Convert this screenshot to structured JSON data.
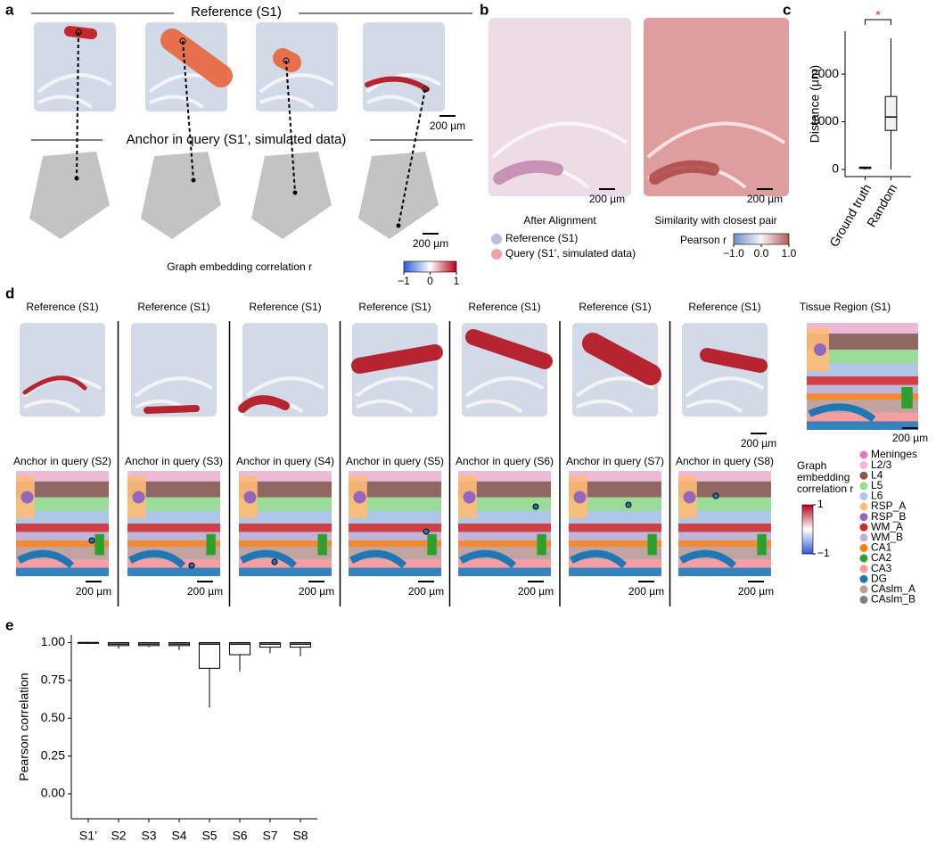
{
  "panel_labels": [
    "a",
    "b",
    "c",
    "d",
    "e"
  ],
  "panel_a": {
    "reference_title": "Reference (S1)",
    "query_title": "Anchor in query (S1’, simulated data)",
    "scale_bar": "200 µm",
    "colorbar_label": "Graph embedding correlation r",
    "colorbar_ticks": [
      {
        "value": -1,
        "label": "−1"
      },
      0,
      1
    ]
  },
  "panel_b": {
    "left_caption": "After Alignment",
    "right_caption": "Similarity with closest pair",
    "scale_bar": "200 µm",
    "legend": [
      {
        "name": "Reference (S1)",
        "color": "#b9bfe0"
      },
      {
        "name": "Query (S1’, simulated data)",
        "color": "#f0a3a6"
      }
    ],
    "colorbar_label": "Pearson r",
    "colorbar_ticks": [
      {
        "value": -1,
        "label": "−1.0"
      },
      {
        "value": 0,
        "label": "0.0"
      },
      {
        "value": 1,
        "label": "1.0"
      }
    ]
  },
  "panel_d": {
    "reference_titles": [
      "Reference (S1)",
      "Reference (S1)",
      "Reference (S1)",
      "Reference (S1)",
      "Reference (S1)",
      "Reference (S1)",
      "Reference (S1)"
    ],
    "region_title": "Tissue Region (S1)",
    "query_titles": [
      "Anchor in query (S2)",
      "Anchor in query (S3)",
      "Anchor in query (S4)",
      "Anchor in query (S5)",
      "Anchor in query (S6)",
      "Anchor in query (S7)",
      "Anchor in query (S8)"
    ],
    "scale_bar": "200 µm",
    "colorbar_label_lines": [
      "Graph",
      "embedding",
      "correlation r"
    ],
    "colorbar_ticks": [
      1,
      {
        "value": -1,
        "label": "−1"
      }
    ],
    "regions": [
      {
        "name": "Meninges",
        "color": "#e377c2"
      },
      {
        "name": "L2/3",
        "color": "#f7b6d2"
      },
      {
        "name": "L4",
        "color": "#8c564b"
      },
      {
        "name": "L5",
        "color": "#98df8a"
      },
      {
        "name": "L6",
        "color": "#aec7e8"
      },
      {
        "name": "RSP_A",
        "color": "#ffbb78"
      },
      {
        "name": "RSP_B",
        "color": "#9467bd"
      },
      {
        "name": "WM_A",
        "color": "#d62728"
      },
      {
        "name": "WM_B",
        "color": "#c5b0d5"
      },
      {
        "name": "CA1",
        "color": "#ff7f0e"
      },
      {
        "name": "CA2",
        "color": "#2ca02c"
      },
      {
        "name": "CA3",
        "color": "#ff9896"
      },
      {
        "name": "DG",
        "color": "#1f77b4"
      },
      {
        "name": "CAslm_A",
        "color": "#c49c94"
      },
      {
        "name": "CAslm_B",
        "color": "#7f7f7f"
      }
    ]
  },
  "chart_data": [
    {
      "type": "box",
      "y_label": "Distance (µm)",
      "categories": [
        "Ground truth",
        "Random"
      ],
      "boxes": [
        {
          "min": 0,
          "q1": 20,
          "median": 35,
          "q3": 50,
          "max": 60
        },
        {
          "min": 0,
          "q1": 820,
          "median": 1100,
          "q3": 1530,
          "max": 2750
        }
      ],
      "significance": "*",
      "ylim": [
        -150,
        2900
      ],
      "yticks": [
        0,
        1000,
        2000
      ],
      "color": "#f2f2f2"
    },
    {
      "type": "box",
      "y_label": "Pearson correlation",
      "categories": [
        "S1’",
        "S2",
        "S3",
        "S4",
        "S5",
        "S6",
        "S7",
        "S8"
      ],
      "boxes": [
        {
          "min": 0.99,
          "q1": 0.995,
          "median": 1.0,
          "q3": 1.0,
          "max": 1.0
        },
        {
          "min": 0.96,
          "q1": 0.98,
          "median": 0.99,
          "q3": 1.0,
          "max": 1.0
        },
        {
          "min": 0.97,
          "q1": 0.98,
          "median": 0.99,
          "q3": 1.0,
          "max": 1.0
        },
        {
          "min": 0.95,
          "q1": 0.98,
          "median": 0.99,
          "q3": 1.0,
          "max": 1.0
        },
        {
          "min": 0.57,
          "q1": 0.83,
          "median": 0.99,
          "q3": 1.0,
          "max": 1.0
        },
        {
          "min": 0.81,
          "q1": 0.92,
          "median": 0.99,
          "q3": 1.0,
          "max": 1.0
        },
        {
          "min": 0.93,
          "q1": 0.97,
          "median": 0.99,
          "q3": 1.0,
          "max": 1.0
        },
        {
          "min": 0.91,
          "q1": 0.97,
          "median": 0.99,
          "q3": 1.0,
          "max": 1.0
        }
      ],
      "ylim": [
        -0.165,
        1.05
      ],
      "yticks": [
        {
          "value": 0,
          "label": "0.00"
        },
        {
          "value": 0.25,
          "label": "0.25"
        },
        {
          "value": 0.5,
          "label": "0.50"
        },
        {
          "value": 0.75,
          "label": "0.75"
        },
        {
          "value": 1,
          "label": "1.00"
        }
      ],
      "color": "#ffffff"
    }
  ]
}
